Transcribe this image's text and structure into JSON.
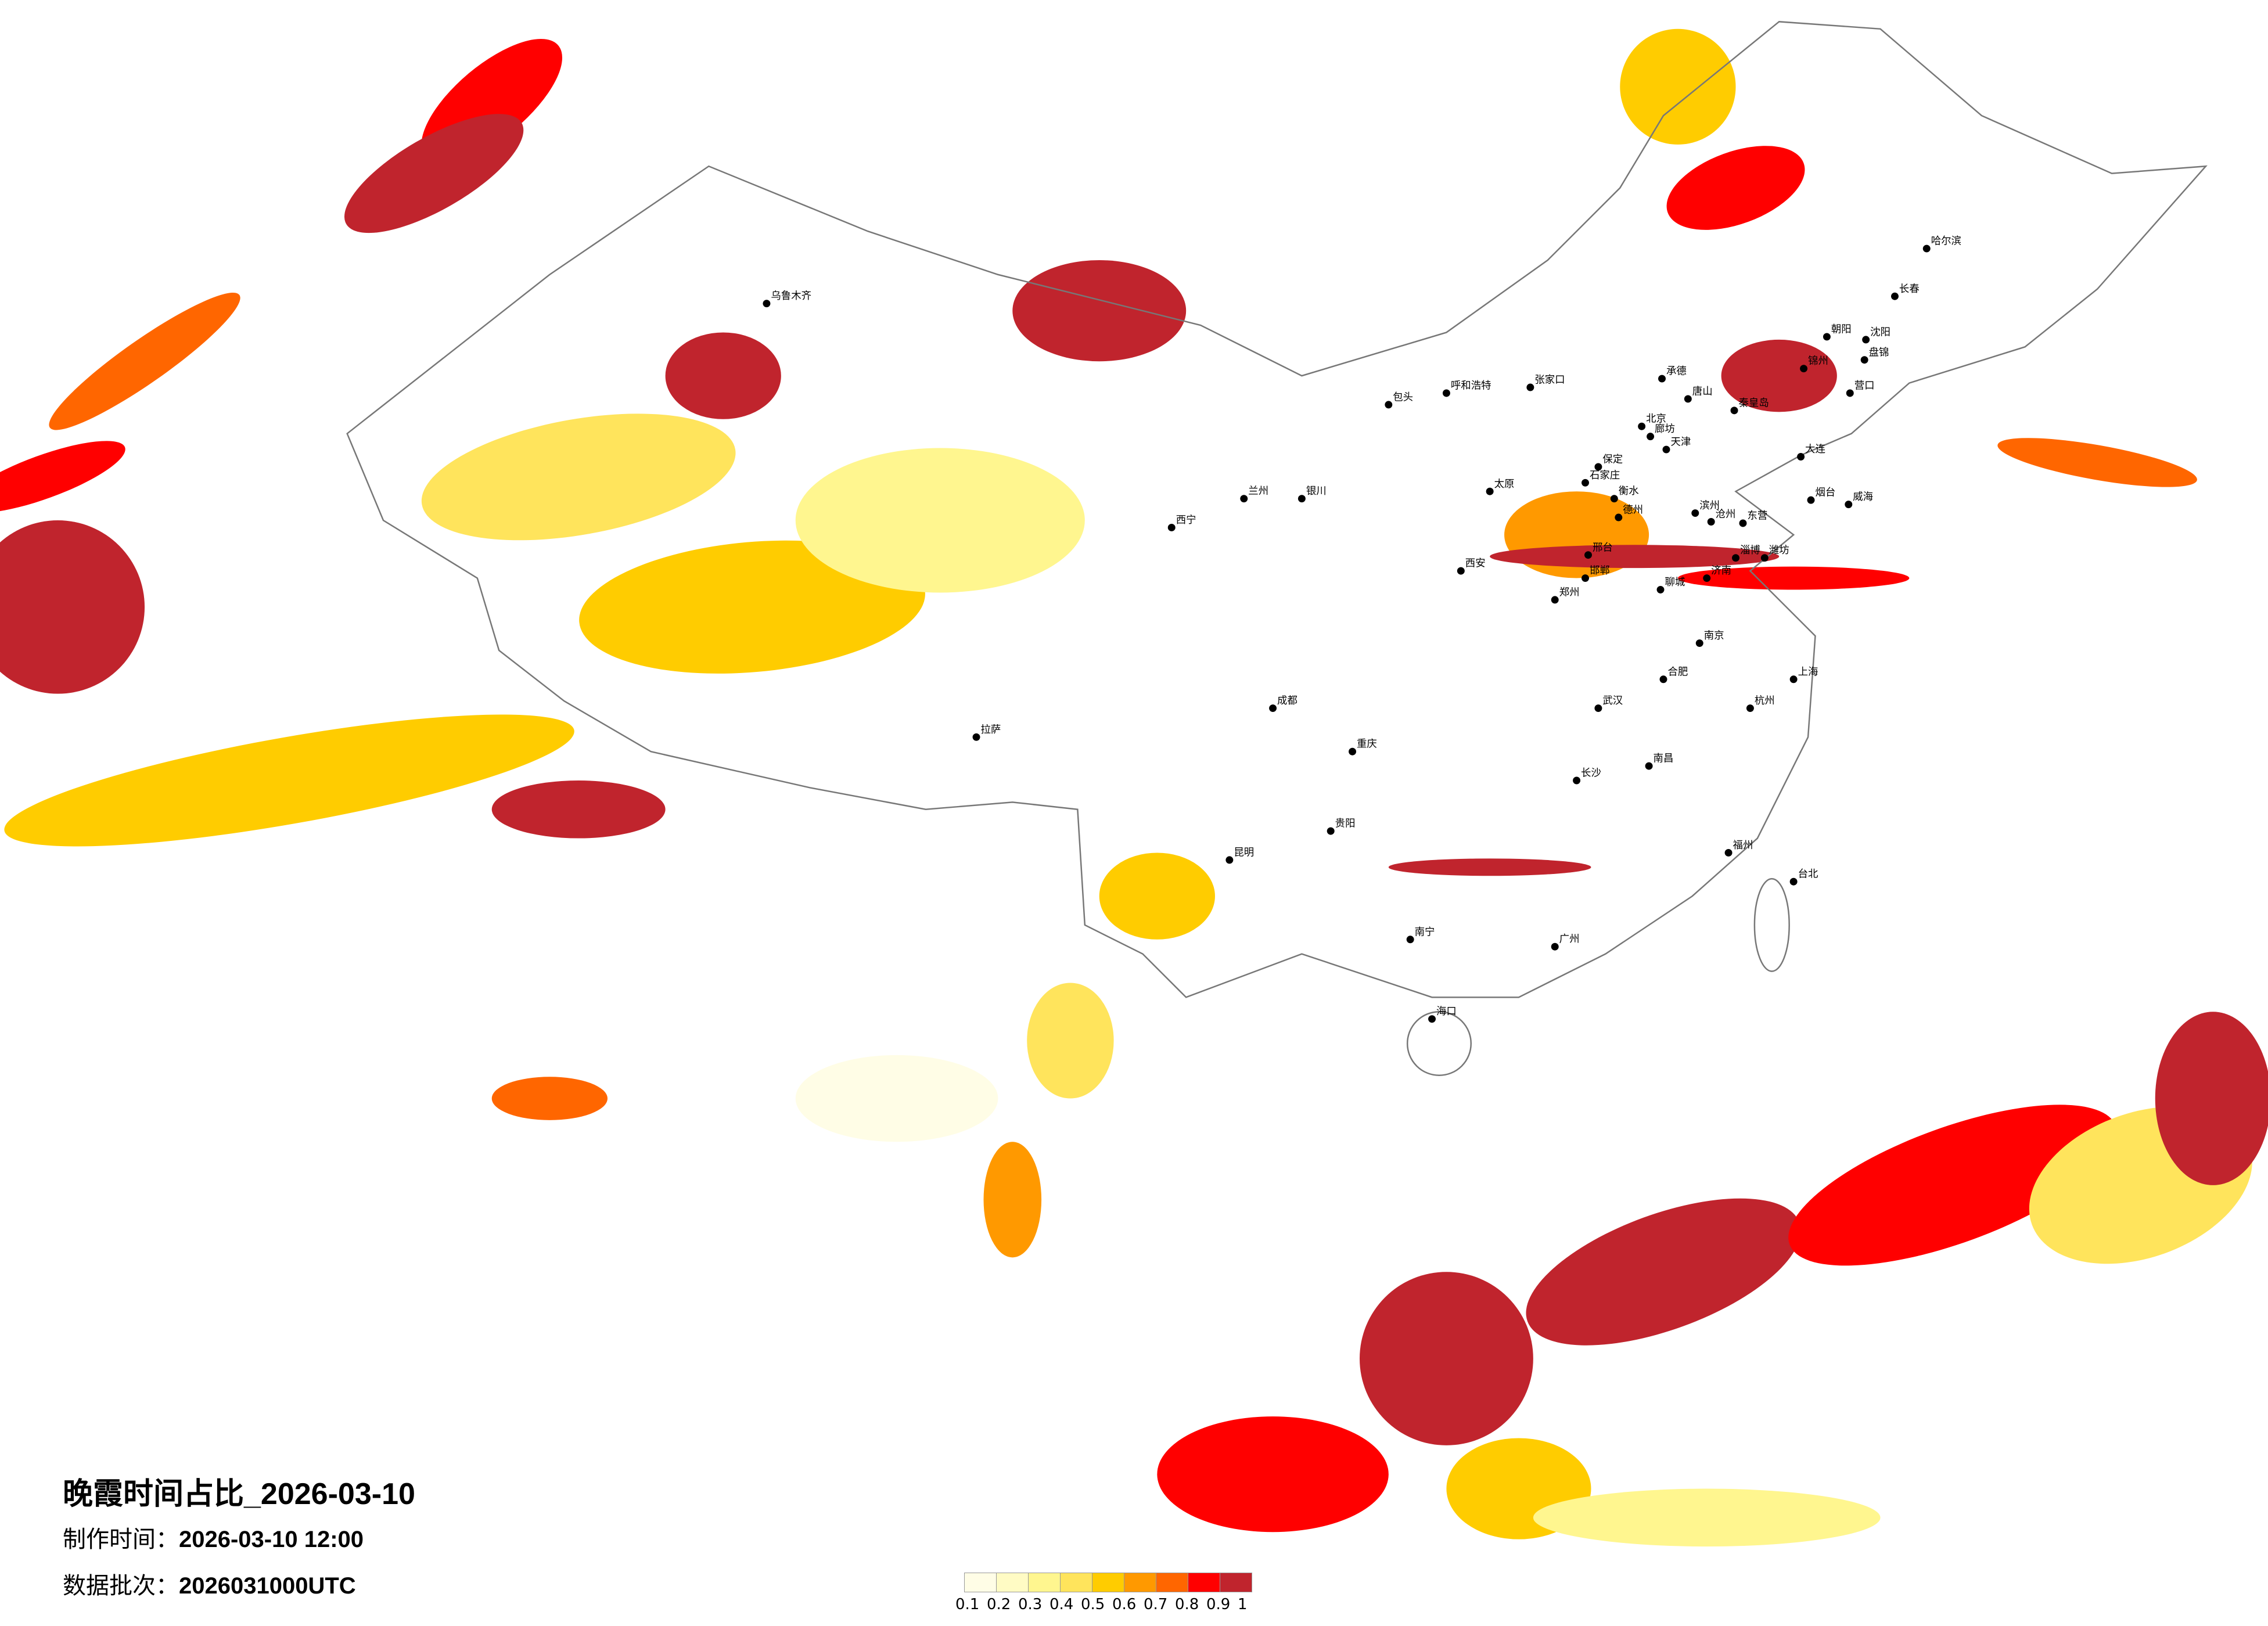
{
  "title": "晚霞时间占比_2026-03-10",
  "production_time_label": "制作时间：",
  "production_time": "2026-03-10 12:00",
  "data_batch_label": "数据批次：",
  "data_batch": "2026031000UTC",
  "legend": {
    "ticks": [
      "0.1",
      "0.2",
      "0.3",
      "0.4",
      "0.5",
      "0.6",
      "0.7",
      "0.8",
      "0.9",
      "1"
    ],
    "colors": [
      "#FFFDE6",
      "#FFFBC4",
      "#FFF68F",
      "#FFE45C",
      "#FFCC00",
      "#FF9900",
      "#FF6600",
      "#FF0000",
      "#C0242D"
    ]
  },
  "cities": [
    "北京",
    "天津",
    "石家庄",
    "保定",
    "廊坊",
    "唐山",
    "承德",
    "张家口",
    "秦皇岛",
    "沧州",
    "衡水",
    "德州",
    "邢台",
    "邯郸",
    "济南",
    "聊城",
    "滨州",
    "东营",
    "淄博",
    "潍坊",
    "烟台",
    "威海",
    "大连",
    "营口",
    "锦州",
    "朝阳",
    "盘锦",
    "哈尔滨",
    "长春",
    "沈阳",
    "呼和浩特",
    "包头",
    "太原",
    "郑州",
    "西安",
    "兰州",
    "西宁",
    "银川",
    "成都",
    "重庆",
    "武汉",
    "长沙",
    "南京",
    "上海",
    "杭州",
    "合肥",
    "南昌",
    "福州",
    "广州",
    "南宁",
    "贵阳",
    "昆明",
    "拉萨",
    "乌鲁木齐",
    "海口",
    "台北"
  ]
}
